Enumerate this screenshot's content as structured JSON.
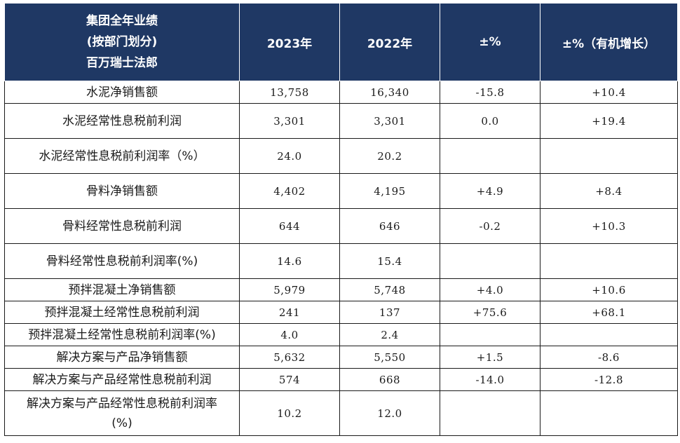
{
  "header": {
    "title_lines": [
      "集团全年业绩",
      "(按部门划分)",
      "百万瑞士法郎"
    ],
    "col_2023": "2023年",
    "col_2022": "2022年",
    "col_pct": "±%",
    "col_pct_organic": "±%（有机增长）"
  },
  "rows": [
    {
      "label": "水泥净销售额",
      "v2023": "13,758",
      "v2022": "16,340",
      "pct": "-15.8",
      "organic": "+10.4"
    },
    {
      "label": "水泥经常性息税前利润",
      "v2023": "3,301",
      "v2022": "3,301",
      "pct": "0.0",
      "organic": "+19.4"
    },
    {
      "label": "水泥经常性息税前利润率（%）",
      "v2023": "24.0",
      "v2022": "20.2",
      "pct": "",
      "organic": ""
    },
    {
      "label": "骨料净销售额",
      "v2023": "4,402",
      "v2022": "4,195",
      "pct": "+4.9",
      "organic": "+8.4"
    },
    {
      "label": "骨料经常性息税前利润",
      "v2023": "644",
      "v2022": "646",
      "pct": "-0.2",
      "organic": "+10.3"
    },
    {
      "label": "骨料经常性息税前利润率(%)",
      "v2023": "14.6",
      "v2022": "15.4",
      "pct": "",
      "organic": ""
    },
    {
      "label": "预拌混凝土净销售额",
      "v2023": "5,979",
      "v2022": "5,748",
      "pct": "+4.0",
      "organic": "+10.6"
    },
    {
      "label": "预拌混凝土经常性息税前利润",
      "v2023": "241",
      "v2022": "137",
      "pct": "+75.6",
      "organic": "+68.1"
    },
    {
      "label": "预拌混凝土经常性息税前利润率(%)",
      "v2023": "4.0",
      "v2022": "2.4",
      "pct": "",
      "organic": ""
    },
    {
      "label": "解决方案与产品净销售额",
      "v2023": "5,632",
      "v2022": "5,550",
      "pct": "+1.5",
      "organic": "-8.6"
    },
    {
      "label": "解决方案与产品经常性息税前利润",
      "v2023": "574",
      "v2022": "668",
      "pct": "-14.0",
      "organic": "-12.8"
    },
    {
      "label_lines": [
        "解决方案与产品经常性息税前利润率",
        "(%)"
      ],
      "v2023": "10.2",
      "v2022": "12.0",
      "pct": "",
      "organic": ""
    }
  ]
}
